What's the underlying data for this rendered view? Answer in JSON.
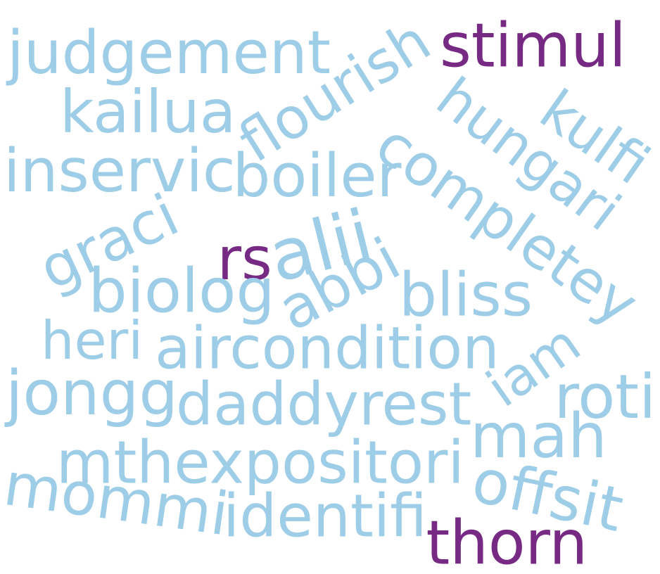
{
  "word_cloud": {
    "colors": {
      "light": "#9ecde8",
      "dark": "#762a83",
      "background": "#ffffff"
    },
    "words": [
      {
        "text": "judgement",
        "color": "light",
        "orientation": "horizontal"
      },
      {
        "text": "flourish",
        "color": "light",
        "orientation": "rotated"
      },
      {
        "text": "stimul",
        "color": "dark",
        "orientation": "horizontal"
      },
      {
        "text": "kailua",
        "color": "light",
        "orientation": "horizontal"
      },
      {
        "text": "hungari",
        "color": "light",
        "orientation": "rotated"
      },
      {
        "text": "kulfi",
        "color": "light",
        "orientation": "rotated"
      },
      {
        "text": "inservic",
        "color": "light",
        "orientation": "horizontal"
      },
      {
        "text": "boiler",
        "color": "light",
        "orientation": "horizontal"
      },
      {
        "text": "completey",
        "color": "light",
        "orientation": "rotated"
      },
      {
        "text": "graci",
        "color": "light",
        "orientation": "rotated"
      },
      {
        "text": "rs",
        "color": "dark",
        "orientation": "horizontal"
      },
      {
        "text": "alii",
        "color": "light",
        "orientation": "rotated"
      },
      {
        "text": "biolog",
        "color": "light",
        "orientation": "horizontal"
      },
      {
        "text": "abbi",
        "color": "light",
        "orientation": "rotated"
      },
      {
        "text": "bliss",
        "color": "light",
        "orientation": "horizontal"
      },
      {
        "text": "heri",
        "color": "light",
        "orientation": "horizontal"
      },
      {
        "text": "aircondition",
        "color": "light",
        "orientation": "horizontal"
      },
      {
        "text": "iam",
        "color": "light",
        "orientation": "rotated"
      },
      {
        "text": "jongg",
        "color": "light",
        "orientation": "horizontal"
      },
      {
        "text": "daddyrest",
        "color": "light",
        "orientation": "horizontal"
      },
      {
        "text": "roti",
        "color": "light",
        "orientation": "horizontal"
      },
      {
        "text": "mah",
        "color": "light",
        "orientation": "horizontal"
      },
      {
        "text": "mthexpositori",
        "color": "light",
        "orientation": "horizontal"
      },
      {
        "text": "offsit",
        "color": "light",
        "orientation": "rotated"
      },
      {
        "text": "mommi",
        "color": "light",
        "orientation": "rotated"
      },
      {
        "text": "identifi",
        "color": "light",
        "orientation": "horizontal"
      },
      {
        "text": "thorn",
        "color": "dark",
        "orientation": "horizontal"
      }
    ]
  }
}
